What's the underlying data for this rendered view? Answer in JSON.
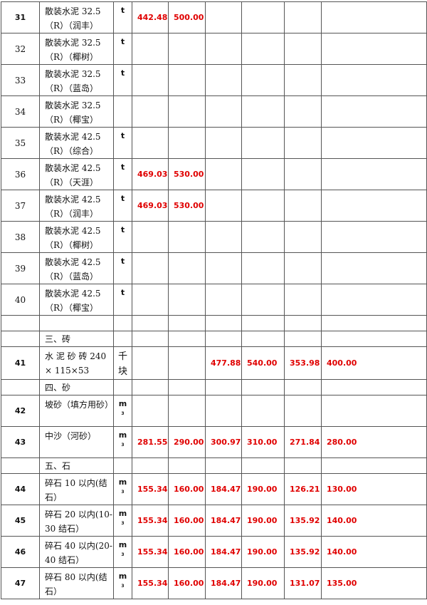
{
  "colors": {
    "price": "#e00000",
    "border": "#555555"
  },
  "rows": [
    {
      "type": "item",
      "no": "31",
      "name": "散装水泥 32.5（R）（润丰）",
      "unit": "t",
      "values": [
        "442.48",
        "500.00",
        "",
        "",
        "",
        ""
      ],
      "bold": true
    },
    {
      "type": "item",
      "no": "32",
      "name": "散装水泥 32.5（R）（椰树）",
      "unit": "t",
      "values": [
        "",
        "",
        "",
        "",
        "",
        ""
      ]
    },
    {
      "type": "item",
      "no": "33",
      "name": "散装水泥 32.5（R）（蓝岛）",
      "unit": "t",
      "values": [
        "",
        "",
        "",
        "",
        "",
        ""
      ]
    },
    {
      "type": "item",
      "no": "34",
      "name": "散装水泥 32.5（R）（椰宝）",
      "unit": "",
      "values": [
        "",
        "",
        "",
        "",
        "",
        ""
      ]
    },
    {
      "type": "item",
      "no": "35",
      "name": "散装水泥 42.5（R）（综合）",
      "unit": "t",
      "values": [
        "",
        "",
        "",
        "",
        "",
        ""
      ]
    },
    {
      "type": "item",
      "no": "36",
      "name": "散装水泥 42.5（R）（天涯）",
      "unit": "t",
      "values": [
        "469.03",
        "530.00",
        "",
        "",
        "",
        ""
      ]
    },
    {
      "type": "item",
      "no": "37",
      "name": "散装水泥 42.5（R）（润丰）",
      "unit": "t",
      "values": [
        "469.03",
        "530.00",
        "",
        "",
        "",
        ""
      ]
    },
    {
      "type": "item",
      "no": "38",
      "name": "散装水泥 42.5（R）（椰树）",
      "unit": "t",
      "values": [
        "",
        "",
        "",
        "",
        "",
        ""
      ]
    },
    {
      "type": "item",
      "no": "39",
      "name": "散装水泥 42.5（R）（蓝岛）",
      "unit": "t",
      "values": [
        "",
        "",
        "",
        "",
        "",
        ""
      ]
    },
    {
      "type": "item",
      "no": "40",
      "name": "散装水泥 42.5（R）（椰宝）",
      "unit": "t",
      "values": [
        "",
        "",
        "",
        "",
        "",
        ""
      ]
    },
    {
      "type": "blank"
    },
    {
      "type": "section",
      "name": "三、砖"
    },
    {
      "type": "item",
      "no": "41",
      "name": "水 泥 砂 砖  240 × 115×53",
      "unit": "千块",
      "values": [
        "",
        "",
        "477.88",
        "540.00",
        "353.98",
        "400.00"
      ],
      "bold": true
    },
    {
      "type": "section",
      "name": "四、砂"
    },
    {
      "type": "item",
      "no": "42",
      "name": "坡砂（填方用砂）",
      "unit": "m³",
      "values": [
        "",
        "",
        "",
        "",
        "",
        ""
      ],
      "bold": true
    },
    {
      "type": "item",
      "no": "43",
      "name": "中沙（河砂）",
      "unit": "m³",
      "values": [
        "281.55",
        "290.00",
        "300.97",
        "310.00",
        "271.84",
        "280.00"
      ],
      "bold": true
    },
    {
      "type": "section",
      "name": "五、石"
    },
    {
      "type": "item",
      "no": "44",
      "name": "碎石 10 以内(结石）",
      "unit": "m³",
      "values": [
        "155.34",
        "160.00",
        "184.47",
        "190.00",
        "126.21",
        "130.00"
      ],
      "bold": true
    },
    {
      "type": "item",
      "no": "45",
      "name": "碎石 20 以内(10-30 结石）",
      "unit": "m³",
      "values": [
        "155.34",
        "160.00",
        "184.47",
        "190.00",
        "135.92",
        "140.00"
      ],
      "bold": true
    },
    {
      "type": "item",
      "no": "46",
      "name": "碎石 40 以内(20-40 结石）",
      "unit": "m³",
      "values": [
        "155.34",
        "160.00",
        "184.47",
        "190.00",
        "135.92",
        "140.00"
      ],
      "bold": true
    },
    {
      "type": "item",
      "no": "47",
      "name": "碎石 80 以内(结石）",
      "unit": "m³",
      "values": [
        "155.34",
        "160.00",
        "184.47",
        "190.00",
        "131.07",
        "135.00"
      ],
      "bold": true
    }
  ]
}
